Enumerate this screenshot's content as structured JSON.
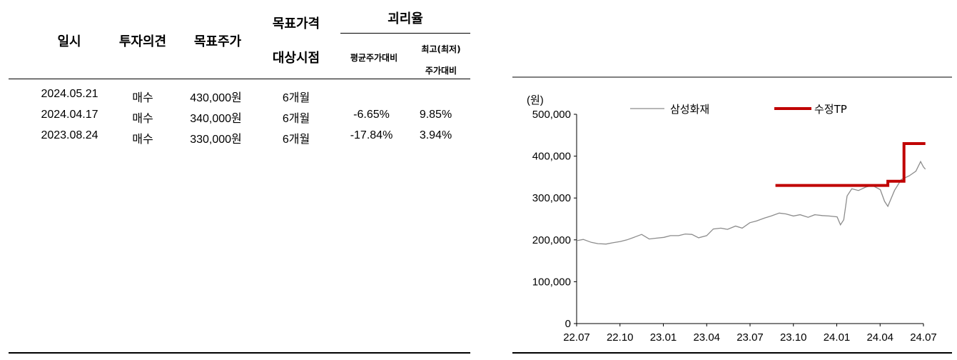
{
  "table": {
    "headers": {
      "date": "일시",
      "opinion": "투자의견",
      "target": "목표주가",
      "period_line1": "목표가격",
      "period_line2": "대상시점",
      "disparity": "괴리율",
      "avg": "평균주가대비",
      "max_line1": "최고(최저)",
      "max_line2": "주가대비"
    },
    "rows": [
      {
        "date": "2024.05.21",
        "opinion": "매수",
        "target": "430,000원",
        "period": "6개월",
        "avg": "",
        "max": ""
      },
      {
        "date": "2024.04.17",
        "opinion": "매수",
        "target": "340,000원",
        "period": "6개월",
        "avg": "-6.65%",
        "max": "9.85%"
      },
      {
        "date": "2023.08.24",
        "opinion": "매수",
        "target": "330,000원",
        "period": "6개월",
        "avg": "-17.84%",
        "max": "3.94%"
      }
    ]
  },
  "chart_data": {
    "type": "line",
    "ylabel": "(원)",
    "ylim": [
      0,
      500000
    ],
    "y_ticks": [
      "500,000",
      "400,000",
      "300,000",
      "200,000",
      "100,000",
      "0"
    ],
    "y_tick_values": [
      500000,
      400000,
      300000,
      200000,
      100000,
      0
    ],
    "x_ticks": [
      "22.07",
      "22.10",
      "23.01",
      "23.04",
      "23.07",
      "23.10",
      "24.01",
      "24.04",
      "24.07"
    ],
    "x_range": [
      "2022-07",
      "2024-07"
    ],
    "legend_placement": "top",
    "grid": false,
    "series": [
      {
        "name": "삼성화재",
        "color": "#8c8c8c",
        "style": "thin",
        "points": [
          [
            "2022-07-01",
            198000
          ],
          [
            "2022-07-15",
            201000
          ],
          [
            "2022-08-01",
            194000
          ],
          [
            "2022-08-15",
            191000
          ],
          [
            "2022-09-01",
            190000
          ],
          [
            "2022-09-15",
            193000
          ],
          [
            "2022-10-01",
            196000
          ],
          [
            "2022-10-15",
            200000
          ],
          [
            "2022-11-01",
            207000
          ],
          [
            "2022-11-15",
            213000
          ],
          [
            "2022-12-01",
            202000
          ],
          [
            "2022-12-15",
            204000
          ],
          [
            "2023-01-01",
            206000
          ],
          [
            "2023-01-15",
            210000
          ],
          [
            "2023-02-01",
            210000
          ],
          [
            "2023-02-15",
            214000
          ],
          [
            "2023-03-01",
            213000
          ],
          [
            "2023-03-15",
            205000
          ],
          [
            "2023-04-01",
            210000
          ],
          [
            "2023-04-15",
            226000
          ],
          [
            "2023-05-01",
            228000
          ],
          [
            "2023-05-15",
            225000
          ],
          [
            "2023-06-01",
            233000
          ],
          [
            "2023-06-15",
            228000
          ],
          [
            "2023-07-01",
            241000
          ],
          [
            "2023-07-15",
            245000
          ],
          [
            "2023-08-01",
            252000
          ],
          [
            "2023-08-15",
            257000
          ],
          [
            "2023-09-01",
            264000
          ],
          [
            "2023-09-15",
            262000
          ],
          [
            "2023-10-01",
            257000
          ],
          [
            "2023-10-15",
            260000
          ],
          [
            "2023-11-01",
            254000
          ],
          [
            "2023-11-15",
            260000
          ],
          [
            "2023-12-01",
            258000
          ],
          [
            "2023-12-15",
            257000
          ],
          [
            "2024-01-01",
            255000
          ],
          [
            "2024-01-08",
            236000
          ],
          [
            "2024-01-15",
            248000
          ],
          [
            "2024-01-22",
            305000
          ],
          [
            "2024-02-01",
            322000
          ],
          [
            "2024-02-15",
            318000
          ],
          [
            "2024-03-01",
            326000
          ],
          [
            "2024-03-15",
            330000
          ],
          [
            "2024-04-01",
            320000
          ],
          [
            "2024-04-10",
            292000
          ],
          [
            "2024-04-17",
            280000
          ],
          [
            "2024-05-01",
            318000
          ],
          [
            "2024-05-15",
            344000
          ],
          [
            "2024-06-01",
            353000
          ],
          [
            "2024-06-15",
            364000
          ],
          [
            "2024-06-25",
            387000
          ],
          [
            "2024-07-01",
            374000
          ],
          [
            "2024-07-05",
            369000
          ]
        ]
      },
      {
        "name": "수정TP",
        "color": "#c00000",
        "style": "step",
        "points": [
          [
            "2023-08-24",
            330000
          ],
          [
            "2024-04-17",
            330000
          ],
          [
            "2024-04-17",
            340000
          ],
          [
            "2024-05-21",
            340000
          ],
          [
            "2024-05-21",
            430000
          ],
          [
            "2024-07-05",
            430000
          ]
        ]
      }
    ]
  }
}
